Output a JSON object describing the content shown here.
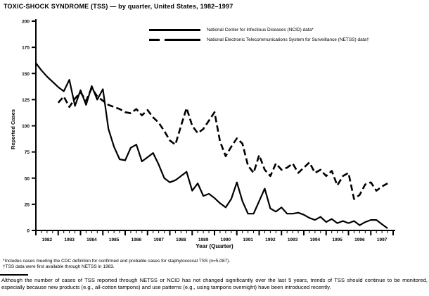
{
  "title": "TOXIC-SHOCK SYNDROME (TSS) — by quarter, United States, 1982–1997",
  "legend": {
    "items": [
      {
        "name": "NCID",
        "style": "solid",
        "label": "National Center for Infectious Diseases (NCID) data*"
      },
      {
        "name": "NETSS",
        "style": "dashed",
        "label": "National Electronic Telecommunications System for Surveillance (NETSS) data†"
      }
    ]
  },
  "y_axis": {
    "label": "Reported Cases",
    "ticks": [
      0,
      25,
      50,
      75,
      100,
      125,
      150,
      175,
      200
    ]
  },
  "x_axis": {
    "label": "Year (Quarter)",
    "years": [
      "1982",
      "1983",
      "1984",
      "1985",
      "1986",
      "1987",
      "1988",
      "1989",
      "1990",
      "1991",
      "1992",
      "1993",
      "1994",
      "1995",
      "1996",
      "1997"
    ]
  },
  "footnotes": {
    "line1": "*Includes cases meeting the CDC definition for confirmed and probable cases for staphylococcal TSS (n=5,087).",
    "line2": "†TSS data were first available through NETSS in 1983."
  },
  "note": "Although the number of cases of TSS reported through NETSS or NCID has not changed significantly over the last 5 years, trends of TSS should continue to be monitored, especially because new products (e.g., all-cotton tampons) and use patterns (e.g., using tampons overnight) have been introduced recently.",
  "chart_data": {
    "type": "line",
    "title": "TOXIC-SHOCK SYNDROME (TSS) — by quarter, United States, 1982–1997",
    "xlabel": "Year (Quarter)",
    "ylabel": "Reported Cases",
    "ylim": [
      0,
      200
    ],
    "yticks": [
      0,
      25,
      50,
      75,
      100,
      125,
      150,
      175,
      200
    ],
    "grid": false,
    "legend_position": "top-center",
    "x_unit": "quarter",
    "x_start": "1982 Q1",
    "x_end": "1997 Q4",
    "quarters_total": 64,
    "line_color": "#000000",
    "series": [
      {
        "name": "NCID",
        "style": "solid",
        "start_quarter": 0,
        "values": [
          160,
          153,
          147,
          142,
          137,
          133,
          144,
          119,
          134,
          120,
          138,
          125,
          135,
          97,
          80,
          68,
          67,
          79,
          82,
          66,
          70,
          74,
          63,
          50,
          46,
          48,
          52,
          56,
          38,
          45,
          33,
          35,
          31,
          26,
          22,
          30,
          46,
          28,
          16,
          16,
          28,
          40,
          21,
          18,
          22,
          16,
          16,
          17,
          15,
          12,
          10,
          13,
          8,
          11,
          7,
          9,
          7,
          9,
          5,
          8,
          10,
          10,
          6,
          2
        ]
      },
      {
        "name": "NETSS",
        "style": "dashed",
        "start_quarter": 4,
        "values": [
          122,
          128,
          118,
          126,
          132,
          124,
          136,
          128,
          124,
          120,
          118,
          116,
          113,
          112,
          116,
          110,
          115,
          108,
          103,
          95,
          86,
          82,
          100,
          117,
          100,
          93,
          97,
          105,
          113,
          85,
          71,
          80,
          88,
          83,
          62,
          55,
          72,
          58,
          52,
          64,
          58,
          60,
          64,
          55,
          60,
          65,
          55,
          58,
          52,
          57,
          43,
          52,
          55,
          30,
          34,
          44,
          46,
          38,
          42,
          45
        ]
      }
    ]
  }
}
